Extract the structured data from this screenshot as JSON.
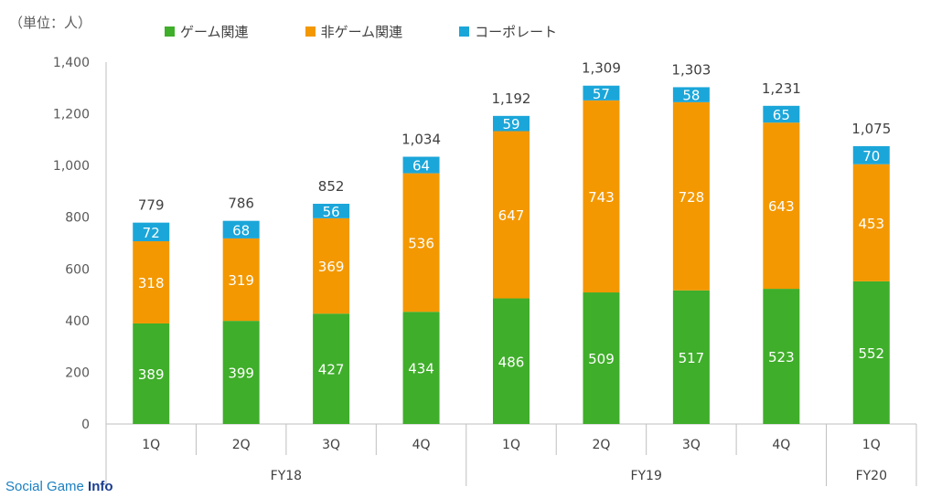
{
  "unit_label": "（単位：人）",
  "watermark": {
    "part1": "Social Game ",
    "part2": "Info"
  },
  "colors": {
    "game": "#3fae2a",
    "nongame": "#f39800",
    "corporate": "#1ba6d9"
  },
  "chart_data": {
    "type": "bar",
    "stacked": true,
    "categories": [
      "1Q",
      "2Q",
      "3Q",
      "4Q",
      "1Q",
      "2Q",
      "3Q",
      "4Q",
      "1Q"
    ],
    "groups": [
      {
        "label": "FY18",
        "count": 4
      },
      {
        "label": "FY19",
        "count": 4
      },
      {
        "label": "FY20",
        "count": 1
      }
    ],
    "series": [
      {
        "name": "ゲーム関連",
        "values": [
          389,
          399,
          427,
          434,
          486,
          509,
          517,
          523,
          552
        ]
      },
      {
        "name": "非ゲーム関連",
        "values": [
          318,
          319,
          369,
          536,
          647,
          743,
          728,
          643,
          453
        ]
      },
      {
        "name": "コーポレート",
        "values": [
          72,
          68,
          56,
          64,
          59,
          57,
          58,
          65,
          70
        ]
      }
    ],
    "totals": [
      "779",
      "786",
      "852",
      "1,034",
      "1,192",
      "1,309",
      "1,303",
      "1,231",
      "1,075"
    ],
    "ylim": [
      0,
      1400
    ],
    "yticks": [
      "0",
      "200",
      "400",
      "600",
      "800",
      "1,000",
      "1,200",
      "1,400"
    ],
    "legend_position": "top",
    "grid": false
  }
}
